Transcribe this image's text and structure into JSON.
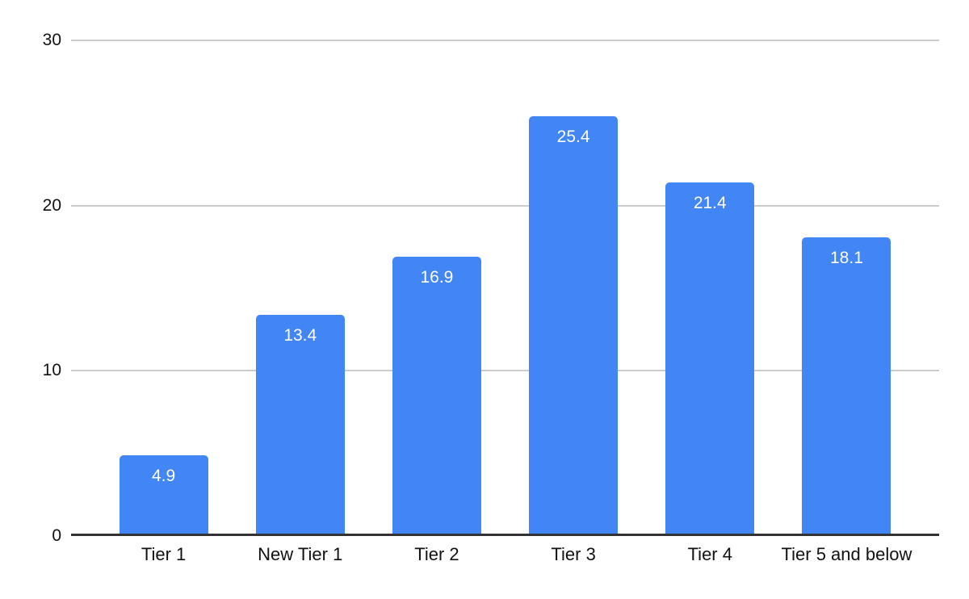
{
  "chart_data": {
    "type": "bar",
    "title": "",
    "xlabel": "",
    "ylabel": "",
    "categories": [
      "Tier 1",
      "New Tier 1",
      "Tier 2",
      "Tier 3",
      "Tier 4",
      "Tier 5 and below"
    ],
    "values": [
      4.9,
      13.4,
      16.9,
      25.4,
      21.4,
      18.1
    ],
    "value_labels": [
      "4.9",
      "13.4",
      "16.9",
      "25.4",
      "21.4",
      "18.1"
    ],
    "ylim": [
      0,
      30
    ],
    "yticks": [
      "0",
      "10",
      "20",
      "30"
    ],
    "ytick_values": [
      0,
      10,
      20,
      30
    ],
    "grid": true,
    "legend": "none",
    "colors": {
      "bar": "#4285f4",
      "value_label": "#ffffff",
      "gridline": "#cccccc",
      "axis_line": "#333333",
      "tick_label": "#111111",
      "background": "#ffffff"
    }
  }
}
